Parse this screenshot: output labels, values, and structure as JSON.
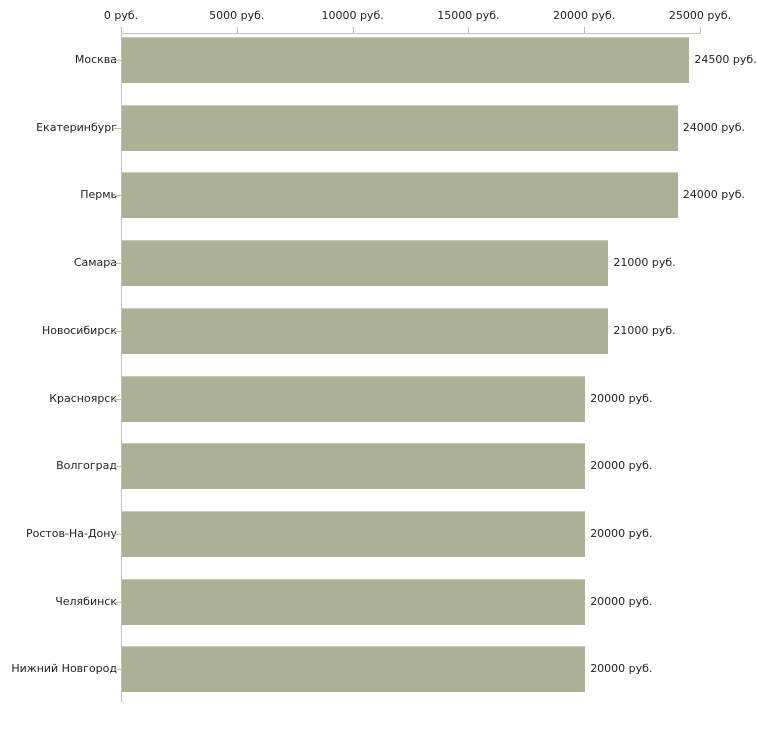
{
  "chart_data": {
    "type": "bar",
    "orientation": "horizontal",
    "title": "",
    "xlabel": "",
    "ylabel": "",
    "unit": "руб.",
    "categories": [
      "Москва",
      "Екатеринбург",
      "Пермь",
      "Самара",
      "Новосибирск",
      "Красноярск",
      "Волгоград",
      "Ростов-На-Дону",
      "Челябинск",
      "Нижний Новгород"
    ],
    "values": [
      24500,
      24000,
      24000,
      21000,
      21000,
      20000,
      20000,
      20000,
      20000,
      20000
    ],
    "value_labels": [
      "24500 руб.",
      "24000 руб.",
      "24000 руб.",
      "21000 руб.",
      "21000 руб.",
      "20000 руб.",
      "20000 руб.",
      "20000 руб.",
      "20000 руб.",
      "20000 руб."
    ],
    "x_axis": {
      "position": "top",
      "min": 0,
      "max": 25000,
      "ticks": [
        0,
        5000,
        10000,
        15000,
        20000,
        25000
      ],
      "tick_labels": [
        "0 руб.",
        "5000 руб.",
        "10000 руб.",
        "15000 руб.",
        "20000 руб.",
        "25000 руб."
      ]
    },
    "grid": false,
    "legend": false,
    "colors": {
      "bar": "#acb095",
      "bar_top_edge": "#c9ccba",
      "axis_line": "#c0c0c0",
      "tick_mark": "#cabf97",
      "text": "#1f1f1f",
      "background": "#ffffff"
    }
  }
}
